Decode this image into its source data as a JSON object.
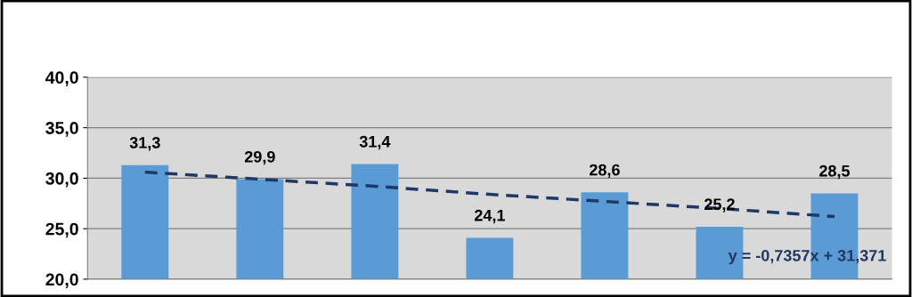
{
  "chart_data": {
    "type": "bar",
    "categories": [
      null,
      null,
      null,
      null,
      null,
      null,
      null
    ],
    "series": [
      {
        "color": "#5b9bd5",
        "values": [
          31.3,
          29.9,
          31.4,
          24.1,
          28.6,
          25.2,
          28.5
        ],
        "value_labels": [
          "31,3",
          "29,9",
          "31,4",
          "24,1",
          "28,6",
          "25,2",
          "28,5"
        ]
      },
      {
        "type": "line",
        "color": "#1f3864",
        "line_style": "dashed",
        "values": [
          30.6,
          29.9,
          29.2,
          28.4,
          27.7,
          27.0,
          26.2
        ]
      }
    ],
    "ylim": [
      20,
      40
    ],
    "yticks": [
      {
        "value": 20,
        "label": "20,0"
      },
      {
        "value": 25,
        "label": "25,0"
      },
      {
        "value": 30,
        "label": "30,0"
      },
      {
        "value": 35,
        "label": "35,0"
      },
      {
        "value": 40,
        "label": "40,0"
      }
    ],
    "grid": "y",
    "annotations": [
      "y = -0,7357x + 31,371"
    ]
  }
}
